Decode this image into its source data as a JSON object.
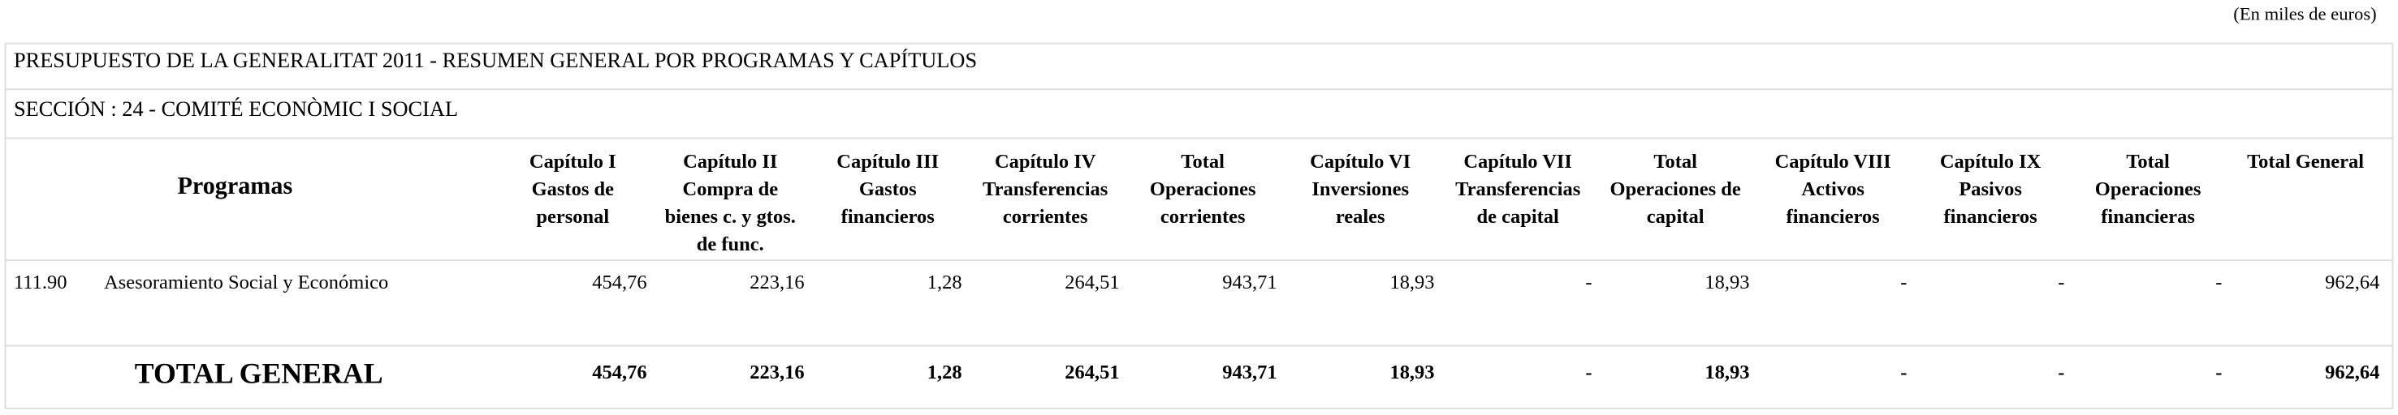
{
  "note_units": "(En miles de euros)",
  "title": "PRESUPUESTO DE LA GENERALITAT 2011 - RESUMEN GENERAL POR PROGRAMAS Y CAPÍTULOS",
  "section": "SECCIÓN : 24  -  COMITÉ ECONÒMIC I SOCIAL",
  "table": {
    "header_label": "Programas",
    "columns": [
      [
        "Capítulo I",
        "Gastos de",
        "personal"
      ],
      [
        "Capítulo II",
        "Compra de",
        "bienes c. y gtos.",
        "de func."
      ],
      [
        "Capítulo III",
        "Gastos",
        "financieros"
      ],
      [
        "Capítulo IV",
        "Transferencias",
        "corrientes"
      ],
      [
        "Total",
        "Operaciones",
        "corrientes"
      ],
      [
        "Capítulo VI",
        "Inversiones",
        "reales"
      ],
      [
        "Capítulo VII",
        "Transferencias",
        "de capital"
      ],
      [
        "Total",
        "Operaciones de",
        "capital"
      ],
      [
        "Capítulo VIII",
        "Activos",
        "financieros"
      ],
      [
        "Capítulo IX",
        "Pasivos",
        "financieros"
      ],
      [
        "Total",
        "Operaciones",
        "financieras"
      ],
      [
        "Total General"
      ]
    ],
    "rows": [
      {
        "code": "111.90",
        "name": "Asesoramiento Social y Económico",
        "values": [
          "454,76",
          "223,16",
          "1,28",
          "264,51",
          "943,71",
          "18,93",
          "-",
          "18,93",
          "-",
          "-",
          "-",
          "962,64"
        ]
      }
    ],
    "total": {
      "label": "TOTAL GENERAL",
      "values": [
        "454,76",
        "223,16",
        "1,28",
        "264,51",
        "943,71",
        "18,93",
        "-",
        "18,93",
        "-",
        "-",
        "-",
        "962,64"
      ]
    }
  }
}
